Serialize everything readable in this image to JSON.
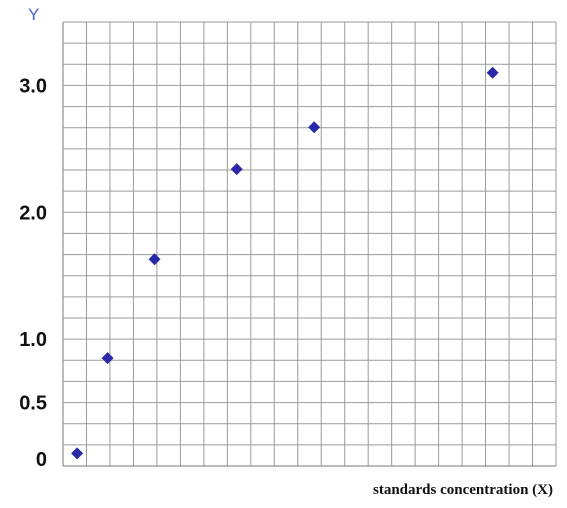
{
  "chart_data": {
    "type": "scatter",
    "title": "",
    "xlabel": "standards concentration (X)",
    "ylabel": "Y",
    "y_tick_labels": [
      "0",
      "0.5",
      "1.0",
      "2.0",
      "3.0"
    ],
    "y_tick_values": [
      0,
      0.5,
      1.0,
      2.0,
      3.0
    ],
    "ylim": [
      0,
      3.5
    ],
    "xlim": [
      0,
      21
    ],
    "grid": true,
    "legend": "none",
    "marker": "diamond",
    "marker_color": "#2a2aa8",
    "series": [
      {
        "x": [
          0.6,
          1.9,
          3.9,
          7.4,
          10.7,
          18.3
        ],
        "y": [
          0.1,
          0.85,
          1.63,
          2.34,
          2.67,
          3.1
        ]
      }
    ]
  }
}
